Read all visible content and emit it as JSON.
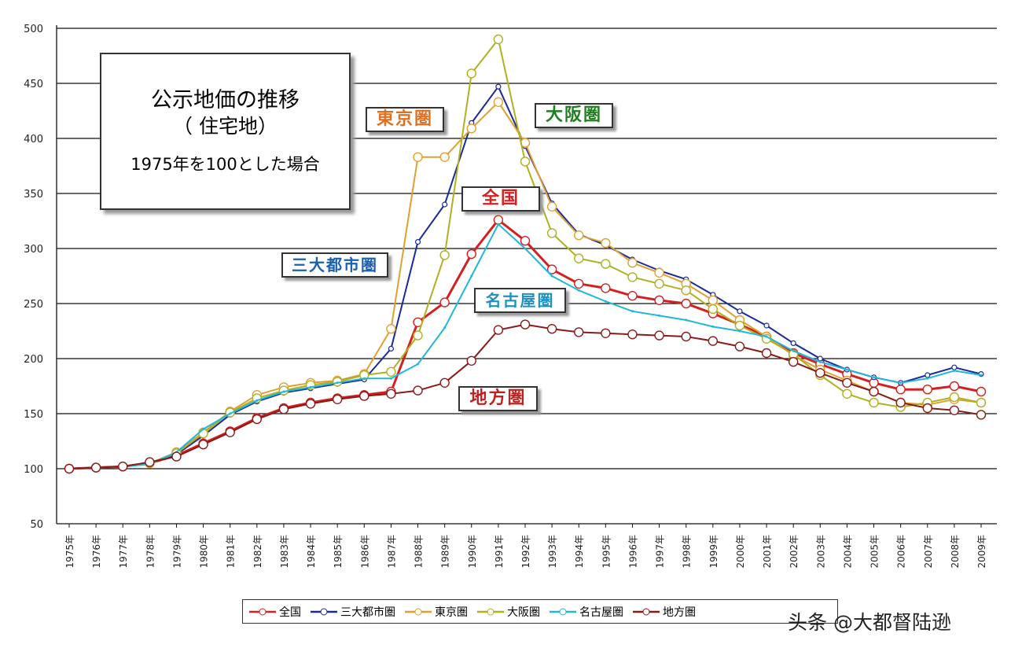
{
  "chart_data": {
    "type": "line",
    "title": "公示地価の推移",
    "subtitle": "（ 住宅地）",
    "note": "1975年を100とした場合",
    "x": [
      "1975年",
      "1976年",
      "1977年",
      "1978年",
      "1979年",
      "1980年",
      "1981年",
      "1982年",
      "1983年",
      "1984年",
      "1985年",
      "1986年",
      "1987年",
      "1988年",
      "1989年",
      "1990年",
      "1991年",
      "1992年",
      "1993年",
      "1994年",
      "1995年",
      "1996年",
      "1997年",
      "1998年",
      "1999年",
      "2000年",
      "2001年",
      "2002年",
      "2003年",
      "2004年",
      "2005年",
      "2006年",
      "2007年",
      "2008年",
      "2009年"
    ],
    "ylim": [
      50,
      500
    ],
    "yticks": [
      "50",
      "100",
      "150",
      "200",
      "250",
      "300",
      "350",
      "400",
      "450",
      "500"
    ],
    "grid": true,
    "legend_position": "bottom",
    "series": [
      {
        "name": "全国",
        "color": "#d42020",
        "marker": "circle",
        "values": [
          100,
          101,
          102,
          105,
          112,
          123,
          134,
          146,
          155,
          160,
          164,
          167,
          170,
          233,
          251,
          295,
          326,
          307,
          281,
          268,
          264,
          257,
          253,
          250,
          241,
          231,
          220,
          205,
          195,
          186,
          178,
          172,
          172,
          175,
          170
        ]
      },
      {
        "name": "三大都市圏",
        "color": "#1a2a9a",
        "marker": "dot",
        "values": [
          100,
          101,
          102,
          105,
          113,
          130,
          149,
          161,
          169,
          173,
          177,
          181,
          209,
          306,
          340,
          414,
          447,
          393,
          341,
          313,
          303,
          290,
          280,
          272,
          258,
          243,
          230,
          214,
          200,
          190,
          183,
          178,
          185,
          192,
          186
        ]
      },
      {
        "name": "東京圏",
        "color": "#e0a030",
        "marker": "circle",
        "values": [
          100,
          101,
          102,
          105,
          115,
          133,
          152,
          167,
          174,
          178,
          180,
          186,
          227,
          383,
          383,
          409,
          433,
          396,
          338,
          312,
          305,
          287,
          278,
          268,
          253,
          235,
          220,
          203,
          190,
          180,
          170,
          160,
          158,
          163,
          160
        ]
      },
      {
        "name": "大阪圏",
        "color": "#b0b020",
        "marker": "circle",
        "values": [
          100,
          101,
          102,
          105,
          114,
          132,
          151,
          164,
          171,
          176,
          179,
          185,
          188,
          221,
          294,
          459,
          490,
          379,
          314,
          291,
          286,
          274,
          268,
          262,
          245,
          230,
          218,
          204,
          185,
          168,
          160,
          156,
          160,
          165,
          160
        ]
      },
      {
        "name": "名古屋圏",
        "color": "#20b8d8",
        "marker": "plus",
        "values": [
          100,
          101,
          102,
          104,
          115,
          136,
          150,
          162,
          170,
          174,
          178,
          182,
          182,
          195,
          228,
          275,
          322,
          300,
          275,
          262,
          252,
          243,
          239,
          235,
          229,
          225,
          220,
          207,
          197,
          190,
          183,
          178,
          182,
          189,
          185
        ]
      },
      {
        "name": "地方圏",
        "color": "#8a1a1a",
        "marker": "circle",
        "values": [
          100,
          101,
          102,
          106,
          111,
          122,
          133,
          145,
          154,
          159,
          163,
          166,
          168,
          171,
          178,
          198,
          226,
          231,
          227,
          224,
          223,
          222,
          221,
          220,
          216,
          211,
          205,
          197,
          187,
          178,
          170,
          160,
          155,
          153,
          149
        ]
      }
    ],
    "annotations": [
      "東京圏",
      "大阪圏",
      "全国",
      "三大都市圏",
      "名古屋圏",
      "地方圏"
    ]
  },
  "watermark": "头条 @大都督陆逊"
}
